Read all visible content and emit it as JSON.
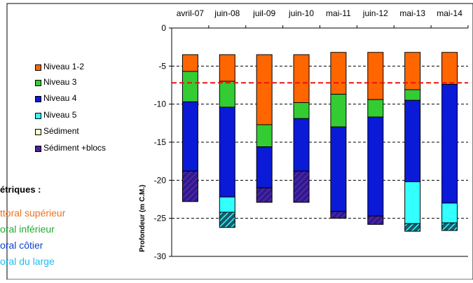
{
  "chart_data": {
    "type": "bar",
    "stacked": true,
    "categories": [
      "avril-07",
      "juin-08",
      "juil-09",
      "juin-10",
      "mai-11",
      "juin-12",
      "mai-13",
      "mai-14"
    ],
    "ylabel": "Profondeur (m C.M.)",
    "ylim": [
      -30,
      0
    ],
    "yticks": [
      0,
      -5,
      -10,
      -15,
      -20,
      -25,
      -30
    ],
    "grid": "horizontal dashed",
    "reference_line": {
      "y": -7.2,
      "style": "red dashed"
    },
    "legend_position": "left",
    "series": [
      {
        "name": "Niveau 1-2",
        "color": "#ff6600",
        "ranges": [
          [
            -3.5,
            -5.7
          ],
          [
            -3.5,
            -7.0
          ],
          [
            -3.5,
            -12.7
          ],
          [
            -3.5,
            -9.8
          ],
          [
            -3.2,
            -8.7
          ],
          [
            -3.2,
            -9.4
          ],
          [
            -3.2,
            -8.1
          ],
          [
            -3.2,
            -7.4
          ]
        ]
      },
      {
        "name": "Niveau 3",
        "color": "#33cc33",
        "ranges": [
          [
            -5.7,
            -9.7
          ],
          [
            -7.0,
            -10.4
          ],
          [
            -12.7,
            -15.6
          ],
          [
            -9.8,
            -11.9
          ],
          [
            -8.7,
            -13.0
          ],
          [
            -9.4,
            -11.7
          ],
          [
            -8.1,
            -9.5
          ],
          null
        ]
      },
      {
        "name": "Niveau 4",
        "color": "#0a1ad6",
        "ranges": [
          [
            -9.7,
            -18.8
          ],
          [
            -10.4,
            -22.2
          ],
          [
            -15.6,
            -21.0
          ],
          [
            -11.9,
            -18.8
          ],
          [
            -13.0,
            -24.1
          ],
          [
            -11.7,
            -24.7
          ],
          [
            -9.5,
            -20.2
          ],
          [
            -7.4,
            -23.0
          ]
        ]
      },
      {
        "name": "Niveau 5",
        "color": "#33ffff",
        "ranges": [
          null,
          [
            -22.2,
            -24.2
          ],
          null,
          null,
          null,
          null,
          [
            -20.2,
            -25.7
          ],
          [
            -23.0,
            -25.6
          ]
        ]
      },
      {
        "name": "Sédiment",
        "color": "#ffffcc",
        "ranges": [
          null,
          null,
          null,
          null,
          null,
          null,
          null,
          null
        ]
      },
      {
        "name": "Sédiment +blocs",
        "pattern": "hatch",
        "ranges": [
          [
            -18.8,
            -22.8
          ],
          null,
          [
            -21.0,
            -22.9
          ],
          [
            -18.8,
            -22.9
          ],
          [
            -24.1,
            -25.0
          ],
          [
            -24.7,
            -25.8
          ],
          null,
          null
        ]
      },
      {
        "name": "Sédiment +blocs (Niveau 5)",
        "pattern": "hatch-cyan",
        "ranges": [
          null,
          [
            -24.2,
            -26.2
          ],
          null,
          null,
          null,
          null,
          [
            -25.7,
            -26.7
          ],
          [
            -25.6,
            -26.6
          ]
        ]
      }
    ]
  },
  "side_text": {
    "title": "étriques :",
    "lines": [
      {
        "text": "ttoral supérieur",
        "color": "#f07020"
      },
      {
        "text": "oral inférieur",
        "color": "#22aa33"
      },
      {
        "text": "oral côtier",
        "color": "#1144cc"
      },
      {
        "text": "oral du large",
        "color": "#22bbee"
      }
    ]
  }
}
